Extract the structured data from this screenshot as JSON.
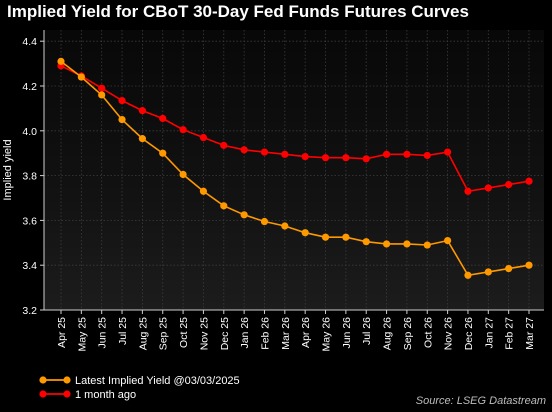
{
  "chart_data": {
    "type": "line",
    "title": "Implied Yield for CBoT 30-Day Fed Funds Futures Curves",
    "ylabel": "Implied yield",
    "xlabel": "",
    "ylim": [
      3.2,
      4.45
    ],
    "yticks": [
      "3.2",
      "3.4",
      "3.6",
      "3.8",
      "4.0",
      "4.2",
      "4.4"
    ],
    "categories": [
      "Apr 25",
      "May 25",
      "Jun 25",
      "Jul 25",
      "Aug 25",
      "Sep 25",
      "Oct 25",
      "Nov 25",
      "Dec 25",
      "Jan 26",
      "Feb 26",
      "Mar 26",
      "Apr 26",
      "May 26",
      "Jun 26",
      "Jul 26",
      "Aug 26",
      "Sep 26",
      "Oct 26",
      "Nov 26",
      "Dec 26",
      "Jan 27",
      "Feb 27",
      "Mar 27"
    ],
    "grid": true,
    "legend_position": "bottom-left",
    "source": "Source: LSEG Datastream",
    "series": [
      {
        "name": "Latest Implied Yield @03/03/2025",
        "color": "#ff9900",
        "values": [
          4.31,
          4.24,
          4.16,
          4.05,
          3.965,
          3.9,
          3.805,
          3.73,
          3.665,
          3.625,
          3.595,
          3.575,
          3.545,
          3.525,
          3.525,
          3.505,
          3.495,
          3.495,
          3.49,
          3.51,
          3.355,
          3.37,
          3.385,
          3.4
        ]
      },
      {
        "name": "1 month ago",
        "color": "#ff0000",
        "values": [
          4.29,
          4.245,
          4.19,
          4.135,
          4.09,
          4.055,
          4.005,
          3.97,
          3.935,
          3.915,
          3.905,
          3.895,
          3.885,
          3.88,
          3.88,
          3.875,
          3.895,
          3.895,
          3.89,
          3.905,
          3.73,
          3.745,
          3.76,
          3.775
        ]
      }
    ]
  }
}
